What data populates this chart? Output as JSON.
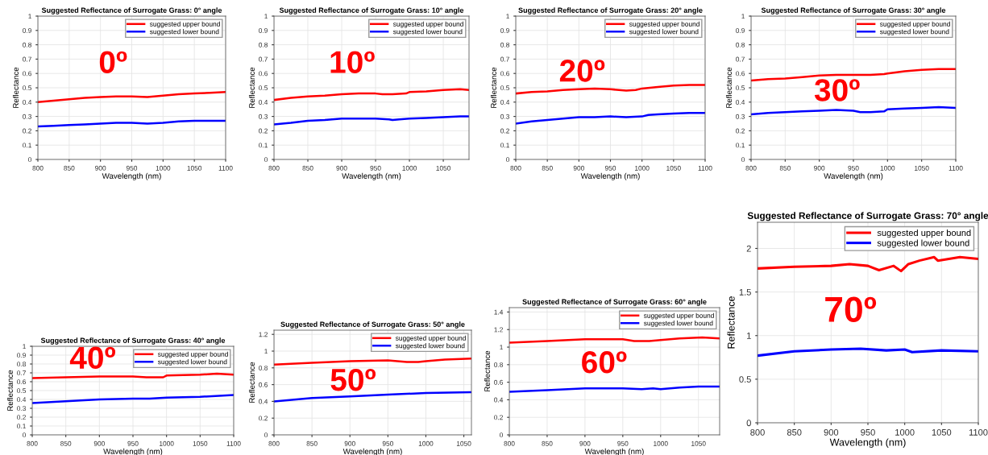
{
  "chart_data": [
    {
      "type": "line",
      "title": "Suggested Reflectance of Surrogate Grass: 0° angle",
      "xlabel": "Wavelength (nm)",
      "ylabel": "Reflectance",
      "annotations": [
        "0º"
      ],
      "xlim": [
        800,
        1100
      ],
      "xticks": [
        800,
        850,
        900,
        950,
        1000,
        1050,
        1100
      ],
      "ylim": [
        0,
        1
      ],
      "yticks": [
        0,
        0.1,
        0.2,
        0.3,
        0.4,
        0.5,
        0.6,
        0.7,
        0.8,
        0.9,
        1
      ],
      "grid": true,
      "legend": "top right",
      "series": [
        {
          "name": "suggested upper bound",
          "color": "#ff0000",
          "x": [
            800,
            825,
            850,
            875,
            900,
            925,
            950,
            975,
            1000,
            1025,
            1050,
            1075,
            1100
          ],
          "values": [
            0.4,
            0.41,
            0.42,
            0.43,
            0.435,
            0.44,
            0.44,
            0.435,
            0.445,
            0.455,
            0.46,
            0.465,
            0.47
          ]
        },
        {
          "name": "suggested lower bound",
          "color": "#0000ff",
          "x": [
            800,
            825,
            850,
            875,
            900,
            925,
            950,
            975,
            1000,
            1025,
            1050,
            1075,
            1100
          ],
          "values": [
            0.23,
            0.235,
            0.24,
            0.245,
            0.25,
            0.255,
            0.255,
            0.25,
            0.255,
            0.265,
            0.27,
            0.27,
            0.27
          ]
        }
      ]
    },
    {
      "type": "line",
      "title": "Suggested Reflectance of Surrogate Grass: 10° angle",
      "xlabel": "Wavelength (nm)",
      "ylabel": "Reflectance",
      "annotations": [
        "10º"
      ],
      "xlim": [
        800,
        1088
      ],
      "xticks": [
        800,
        850,
        900,
        950,
        1000,
        1050
      ],
      "ylim": [
        0,
        1
      ],
      "yticks": [
        0,
        0.1,
        0.2,
        0.3,
        0.4,
        0.5,
        0.6,
        0.7,
        0.8,
        0.9,
        1
      ],
      "grid": true,
      "legend": "top right",
      "series": [
        {
          "name": "suggested upper bound",
          "color": "#ff0000",
          "x": [
            800,
            825,
            850,
            875,
            900,
            925,
            950,
            960,
            975,
            995,
            1000,
            1025,
            1050,
            1075,
            1088
          ],
          "values": [
            0.415,
            0.43,
            0.44,
            0.445,
            0.455,
            0.46,
            0.46,
            0.455,
            0.455,
            0.46,
            0.47,
            0.475,
            0.485,
            0.49,
            0.485
          ]
        },
        {
          "name": "suggested lower bound",
          "color": "#0000ff",
          "x": [
            800,
            825,
            850,
            875,
            900,
            925,
            950,
            970,
            975,
            985,
            1000,
            1025,
            1050,
            1075,
            1088
          ],
          "values": [
            0.245,
            0.255,
            0.27,
            0.275,
            0.285,
            0.285,
            0.285,
            0.28,
            0.275,
            0.28,
            0.285,
            0.29,
            0.295,
            0.3,
            0.3
          ]
        }
      ]
    },
    {
      "type": "line",
      "title": "Suggested Reflectance of Surrogate Grass: 20° angle",
      "xlabel": "Wavelength (nm)",
      "ylabel": "Reflectance",
      "annotations": [
        "20º"
      ],
      "xlim": [
        800,
        1100
      ],
      "xticks": [
        800,
        850,
        900,
        950,
        1000,
        1050,
        1100
      ],
      "ylim": [
        0,
        1
      ],
      "yticks": [
        0,
        0.1,
        0.2,
        0.3,
        0.4,
        0.5,
        0.6,
        0.7,
        0.8,
        0.9,
        1
      ],
      "grid": true,
      "legend": "top right",
      "series": [
        {
          "name": "suggested upper bound",
          "color": "#ff0000",
          "x": [
            800,
            825,
            850,
            875,
            900,
            925,
            950,
            975,
            990,
            1000,
            1025,
            1050,
            1075,
            1100
          ],
          "values": [
            0.46,
            0.47,
            0.475,
            0.485,
            0.49,
            0.495,
            0.49,
            0.48,
            0.485,
            0.495,
            0.505,
            0.515,
            0.52,
            0.52
          ]
        },
        {
          "name": "suggested lower bound",
          "color": "#0000ff",
          "x": [
            800,
            825,
            850,
            875,
            900,
            925,
            950,
            975,
            1000,
            1010,
            1025,
            1050,
            1075,
            1100
          ],
          "values": [
            0.25,
            0.265,
            0.275,
            0.285,
            0.295,
            0.295,
            0.3,
            0.295,
            0.3,
            0.31,
            0.315,
            0.32,
            0.325,
            0.325
          ]
        }
      ]
    },
    {
      "type": "line",
      "title": "Suggested Reflectance of Surrogate Grass: 30° angle",
      "xlabel": "Wavelength (nm)",
      "ylabel": "Reflectance",
      "annotations": [
        "30º"
      ],
      "xlim": [
        800,
        1100
      ],
      "xticks": [
        800,
        850,
        900,
        950,
        1000,
        1050,
        1100
      ],
      "ylim": [
        0,
        1
      ],
      "yticks": [
        0,
        0.1,
        0.2,
        0.3,
        0.4,
        0.5,
        0.6,
        0.7,
        0.8,
        0.9,
        1
      ],
      "grid": true,
      "legend": "top right",
      "series": [
        {
          "name": "suggested upper bound",
          "color": "#ff0000",
          "x": [
            800,
            825,
            850,
            875,
            900,
            925,
            950,
            975,
            995,
            1000,
            1025,
            1050,
            1075,
            1100
          ],
          "values": [
            0.55,
            0.56,
            0.565,
            0.575,
            0.585,
            0.59,
            0.59,
            0.59,
            0.595,
            0.6,
            0.615,
            0.625,
            0.63,
            0.63
          ]
        },
        {
          "name": "suggested lower bound",
          "color": "#0000ff",
          "x": [
            800,
            825,
            850,
            875,
            900,
            925,
            950,
            960,
            975,
            995,
            1000,
            1025,
            1050,
            1075,
            1100
          ],
          "values": [
            0.315,
            0.325,
            0.33,
            0.335,
            0.34,
            0.345,
            0.34,
            0.33,
            0.33,
            0.335,
            0.35,
            0.355,
            0.36,
            0.365,
            0.36
          ]
        }
      ]
    },
    {
      "type": "line",
      "title": "Suggested Reflectance of Surrogate Grass: 40° angle",
      "xlabel": "Wavelength (nm)",
      "ylabel": "Reflectance",
      "annotations": [
        "40º"
      ],
      "xlim": [
        800,
        1100
      ],
      "xticks": [
        800,
        850,
        900,
        950,
        1000,
        1050,
        1100
      ],
      "ylim": [
        0,
        1
      ],
      "yticks": [
        0,
        0.1,
        0.2,
        0.3,
        0.4,
        0.5,
        0.6,
        0.7,
        0.8,
        0.9,
        1
      ],
      "grid": true,
      "legend": "top right",
      "series": [
        {
          "name": "suggested upper bound",
          "color": "#ff0000",
          "x": [
            800,
            850,
            900,
            950,
            970,
            995,
            1000,
            1050,
            1075,
            1100
          ],
          "values": [
            0.64,
            0.65,
            0.66,
            0.66,
            0.65,
            0.65,
            0.67,
            0.68,
            0.69,
            0.68
          ]
        },
        {
          "name": "suggested lower bound",
          "color": "#0000ff",
          "x": [
            800,
            850,
            900,
            950,
            975,
            1000,
            1050,
            1100
          ],
          "values": [
            0.36,
            0.38,
            0.4,
            0.41,
            0.41,
            0.42,
            0.43,
            0.45
          ]
        }
      ]
    },
    {
      "type": "line",
      "title": "Suggested Reflectance of Surrogate Grass: 50° angle",
      "xlabel": "Wavelength (nm)",
      "ylabel": "Reflectance",
      "annotations": [
        "50º"
      ],
      "xlim": [
        800,
        1060
      ],
      "xticks": [
        800,
        850,
        900,
        950,
        1000,
        1050
      ],
      "ylim": [
        0,
        1.25
      ],
      "yticks": [
        0,
        0.2,
        0.4,
        0.6,
        0.8,
        1,
        1.2
      ],
      "grid": true,
      "legend": "top right",
      "series": [
        {
          "name": "suggested upper bound",
          "color": "#ff0000",
          "x": [
            800,
            850,
            900,
            950,
            975,
            990,
            1000,
            1025,
            1060
          ],
          "values": [
            0.84,
            0.86,
            0.88,
            0.89,
            0.87,
            0.87,
            0.88,
            0.9,
            0.91
          ]
        },
        {
          "name": "suggested lower bound",
          "color": "#0000ff",
          "x": [
            800,
            850,
            900,
            950,
            1000,
            1060
          ],
          "values": [
            0.4,
            0.44,
            0.46,
            0.48,
            0.5,
            0.51
          ]
        }
      ]
    },
    {
      "type": "line",
      "title": "Suggested Reflectance of Surrogate Grass: 60° angle",
      "xlabel": "Wavelength (nm)",
      "ylabel": "Reflectance",
      "annotations": [
        "60º"
      ],
      "xlim": [
        800,
        1078
      ],
      "xticks": [
        800,
        850,
        900,
        950,
        1000,
        1050
      ],
      "ylim": [
        0,
        1.45
      ],
      "yticks": [
        0,
        0.2,
        0.4,
        0.6,
        0.8,
        1,
        1.2,
        1.4
      ],
      "grid": true,
      "legend": "top right",
      "series": [
        {
          "name": "suggested upper bound",
          "color": "#ff0000",
          "x": [
            800,
            850,
            900,
            950,
            965,
            985,
            1000,
            1025,
            1055,
            1078
          ],
          "values": [
            1.05,
            1.07,
            1.09,
            1.09,
            1.07,
            1.07,
            1.08,
            1.1,
            1.11,
            1.1
          ]
        },
        {
          "name": "suggested lower bound",
          "color": "#0000ff",
          "x": [
            800,
            850,
            900,
            950,
            975,
            990,
            1000,
            1025,
            1050,
            1078
          ],
          "values": [
            0.49,
            0.51,
            0.53,
            0.53,
            0.52,
            0.53,
            0.52,
            0.54,
            0.55,
            0.55
          ]
        }
      ]
    },
    {
      "type": "line",
      "title": "Suggested Reflectance of Surrogate Grass: 70° angle",
      "xlabel": "Wavelength (nm)",
      "ylabel": "Reflectance",
      "annotations": [
        "70º"
      ],
      "xlim": [
        800,
        1100
      ],
      "xticks": [
        800,
        850,
        900,
        950,
        1000,
        1050,
        1100
      ],
      "ylim": [
        0,
        2.3
      ],
      "yticks": [
        0,
        0.5,
        1,
        1.5,
        2
      ],
      "grid": true,
      "legend": "top right",
      "series": [
        {
          "name": "suggested upper bound",
          "color": "#ff0000",
          "x": [
            800,
            850,
            900,
            925,
            950,
            965,
            985,
            995,
            1005,
            1020,
            1040,
            1045,
            1075,
            1100
          ],
          "values": [
            1.77,
            1.79,
            1.8,
            1.82,
            1.8,
            1.75,
            1.8,
            1.74,
            1.82,
            1.86,
            1.9,
            1.86,
            1.9,
            1.88
          ]
        },
        {
          "name": "suggested lower bound",
          "color": "#0000ff",
          "x": [
            800,
            850,
            900,
            940,
            975,
            1000,
            1010,
            1050,
            1100
          ],
          "values": [
            0.77,
            0.82,
            0.84,
            0.85,
            0.83,
            0.84,
            0.81,
            0.83,
            0.82
          ]
        }
      ]
    }
  ]
}
